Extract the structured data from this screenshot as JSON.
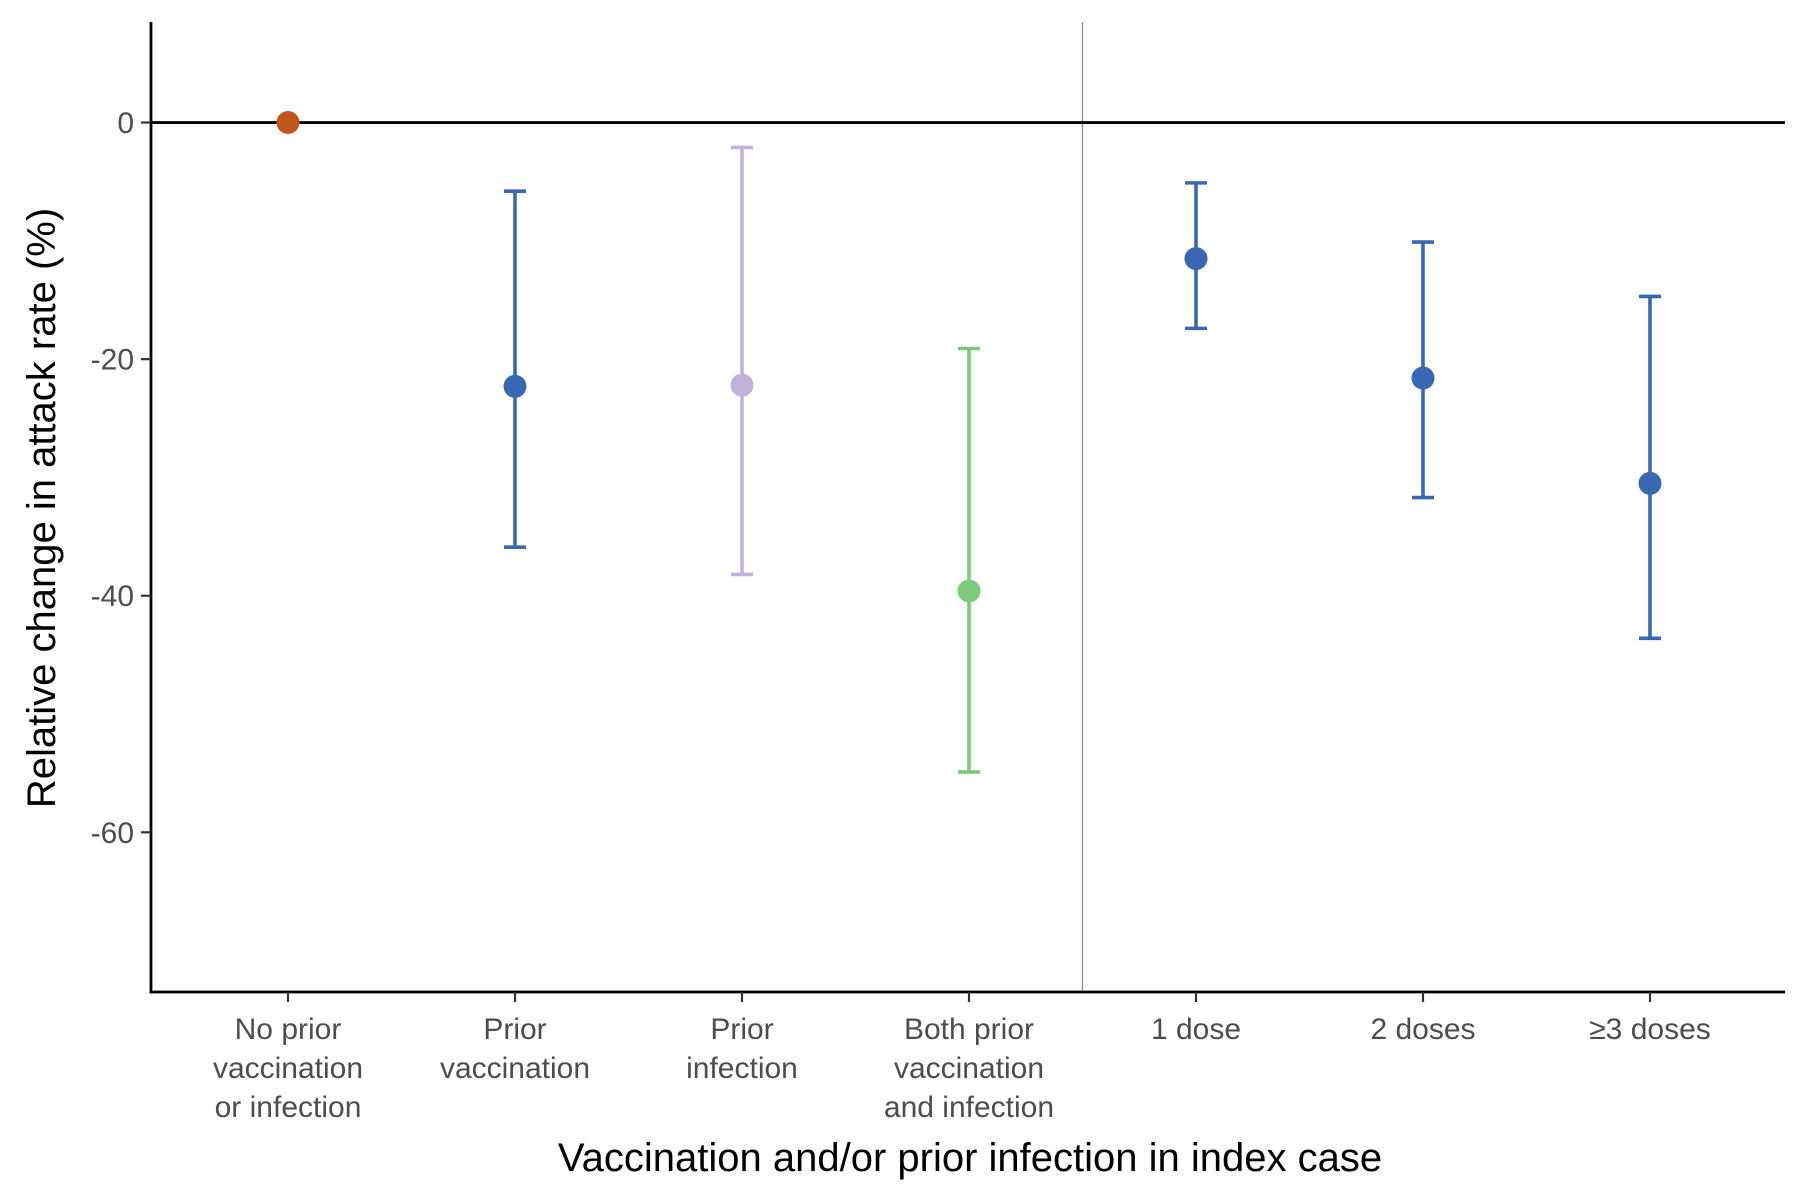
{
  "chart_data": {
    "type": "scatter",
    "xlabel": "Vaccination and/or prior infection in index case",
    "ylabel": "Relative change in attack rate (%)",
    "ylim": [
      -73.5,
      8.5
    ],
    "yticks": [
      0,
      -20,
      -40,
      -60
    ],
    "ytick_labels": [
      "0",
      "-20",
      "-40",
      "-60"
    ],
    "reference_line_y": 0,
    "separator_between": [
      3,
      4
    ],
    "grid": false,
    "legend": "none",
    "categories": [
      "No prior\nvaccination\nor infection",
      "Prior\nvaccination",
      "Prior\ninfection",
      "Both prior\nvaccination\nand infection",
      "1 dose",
      "2 doses",
      "≥3 doses"
    ],
    "points": [
      {
        "estimate": 0,
        "lower": null,
        "upper": null,
        "color": "#C0561B"
      },
      {
        "estimate": -22.3,
        "lower": -35.9,
        "upper": -5.8,
        "color": "#3A67B1"
      },
      {
        "estimate": -22.2,
        "lower": -38.2,
        "upper": -2.1,
        "color": "#C2B1D9"
      },
      {
        "estimate": -39.6,
        "lower": -54.9,
        "upper": -19.1,
        "color": "#7FC97F"
      },
      {
        "estimate": -11.5,
        "lower": -17.4,
        "upper": -5.1,
        "color": "#3A67B1"
      },
      {
        "estimate": -21.6,
        "lower": -31.7,
        "upper": -10.1,
        "color": "#3A67B1"
      },
      {
        "estimate": -30.5,
        "lower": -43.6,
        "upper": -14.7,
        "color": "#3A67B1"
      }
    ]
  }
}
